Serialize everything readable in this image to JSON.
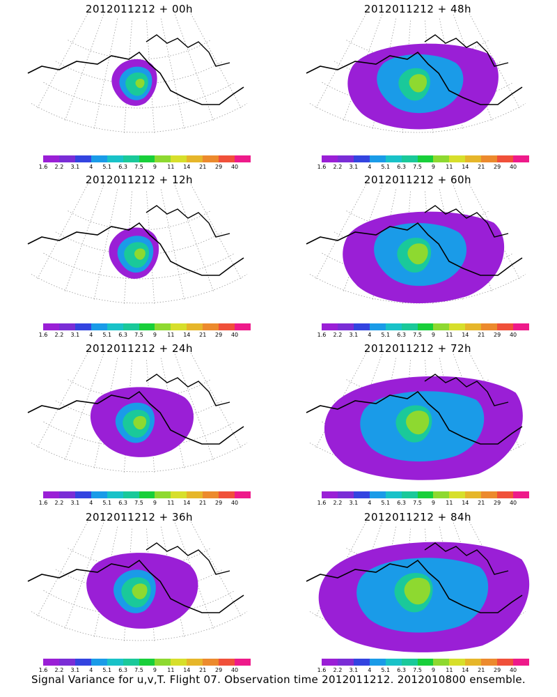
{
  "caption": "Signal Variance for u,v,T. Flight 07. Observation time 2012011212. 2012010800 ensemble.",
  "colorbar": {
    "labels": [
      "1.6",
      "2.2",
      "3.1",
      "4",
      "5.1",
      "6.3",
      "7.5",
      "9",
      "11",
      "14",
      "21",
      "29",
      "40"
    ],
    "colors": [
      "#9a1fd6",
      "#7a2dd6",
      "#3344e0",
      "#1a9be8",
      "#19c2c8",
      "#1ac99a",
      "#18cf3a",
      "#8ed930",
      "#d7df2b",
      "#e6b62a",
      "#ec8a2d",
      "#f0503a",
      "#ee1a8a"
    ]
  },
  "panels": [
    {
      "title": "2012011212 + 00h",
      "level": 1
    },
    {
      "title": "2012011212 + 48h",
      "level": 5
    },
    {
      "title": "2012011212 + 12h",
      "level": 2
    },
    {
      "title": "2012011212 + 60h",
      "level": 6
    },
    {
      "title": "2012011212 + 24h",
      "level": 3
    },
    {
      "title": "2012011212 + 72h",
      "level": 7
    },
    {
      "title": "2012011212 + 36h",
      "level": 4
    },
    {
      "title": "2012011212 + 84h",
      "level": 8
    }
  ]
}
